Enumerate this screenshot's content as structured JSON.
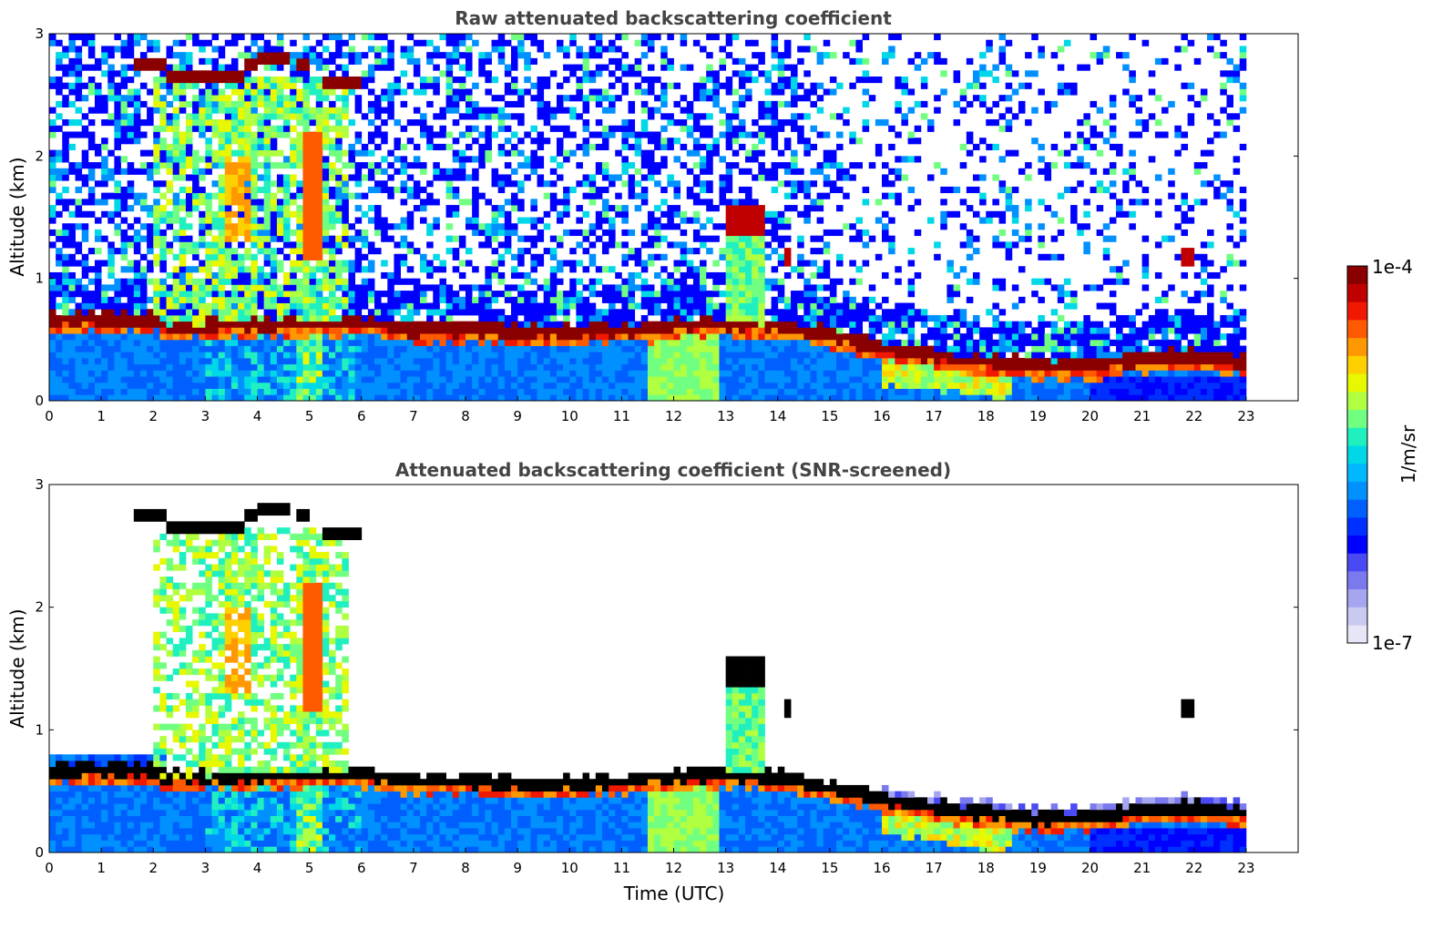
{
  "chart_data": [
    {
      "type": "heatmap",
      "title": "Raw attenuated backscattering coefficient",
      "xlabel": "",
      "ylabel": "Altitude (km)",
      "xlim": [
        0,
        24
      ],
      "ylim": [
        0,
        3
      ],
      "xticks": [
        "0",
        "1",
        "2",
        "3",
        "4",
        "5",
        "6",
        "7",
        "8",
        "9",
        "10",
        "11",
        "12",
        "13",
        "14",
        "15",
        "16",
        "17",
        "18",
        "19",
        "20",
        "21",
        "22",
        "23"
      ],
      "yticks": [
        "0",
        "1",
        "2",
        "3"
      ],
      "data_end_hour": 23,
      "boundary_layer_top_km": [
        [
          0,
          0.68
        ],
        [
          2.1,
          0.68
        ],
        [
          2.2,
          0.62
        ],
        [
          6.0,
          0.66
        ],
        [
          7,
          0.6
        ],
        [
          8,
          0.6
        ],
        [
          9,
          0.57
        ],
        [
          10,
          0.57
        ],
        [
          11,
          0.6
        ],
        [
          12,
          0.62
        ],
        [
          13,
          0.65
        ],
        [
          14,
          0.63
        ],
        [
          15,
          0.55
        ],
        [
          16,
          0.45
        ],
        [
          17,
          0.38
        ],
        [
          18,
          0.33
        ],
        [
          19,
          0.3
        ],
        [
          20,
          0.3
        ],
        [
          21,
          0.36
        ],
        [
          22,
          0.38
        ],
        [
          23,
          0.34
        ]
      ],
      "cloud_features": [
        {
          "t0": 1.6,
          "t1": 6.0,
          "alt_km": 2.7,
          "desc": "elevated cloud layer 2.5-2.9 km"
        },
        {
          "t0": 3.2,
          "t1": 5.6,
          "alt_km": 1.6,
          "desc": "falling precipitation streaks"
        },
        {
          "t0": 13.0,
          "t1": 13.7,
          "alt_km": 1.5,
          "desc": "cloud near 1.5 km"
        },
        {
          "t0": 14.1,
          "t1": 14.3,
          "alt_km": 1.2,
          "desc": "small cloud"
        },
        {
          "t0": 21.8,
          "t1": 21.95,
          "alt_km": 1.15,
          "desc": "small cloud"
        }
      ],
      "snr_screened": false
    },
    {
      "type": "heatmap",
      "title": "Attenuated backscattering coefficient (SNR-screened)",
      "xlabel": "Time (UTC)",
      "ylabel": "Altitude (km)",
      "xlim": [
        0,
        24
      ],
      "ylim": [
        0,
        3
      ],
      "xticks": [
        "0",
        "1",
        "2",
        "3",
        "4",
        "5",
        "6",
        "7",
        "8",
        "9",
        "10",
        "11",
        "12",
        "13",
        "14",
        "15",
        "16",
        "17",
        "18",
        "19",
        "20",
        "21",
        "22",
        "23"
      ],
      "yticks": [
        "0",
        "1",
        "2",
        "3"
      ],
      "data_end_hour": 23,
      "snr_screened": true
    }
  ],
  "colorbar": {
    "max_label": "1e-4",
    "min_label": "1e-7",
    "unit_label": "1/m/sr",
    "colors": [
      "#e6e6f7",
      "#c9c9f2",
      "#a6a6f0",
      "#7a7aee",
      "#4a4af5",
      "#0000ff",
      "#0030ff",
      "#0060ff",
      "#0090ff",
      "#00b8ff",
      "#00d8e8",
      "#20f0c0",
      "#70ff80",
      "#b0ff40",
      "#e8f800",
      "#ffd000",
      "#ff9800",
      "#ff5a00",
      "#f01800",
      "#c00000",
      "#8a0000"
    ]
  }
}
